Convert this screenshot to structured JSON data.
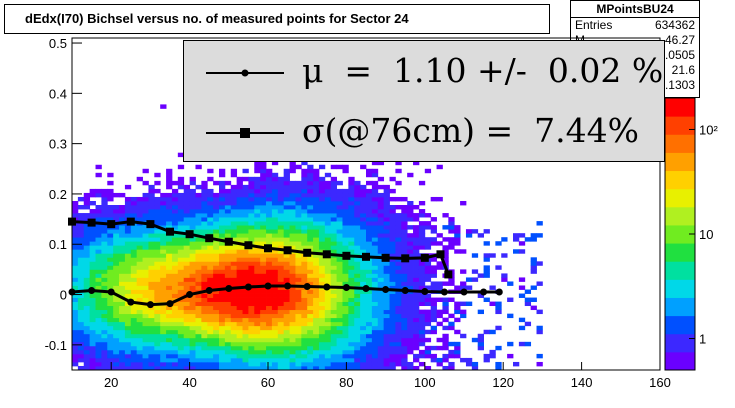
{
  "title": "dEdx(I70) Bichsel versus no. of measured points for Sector 24",
  "stats": {
    "name": "MPointsBU24",
    "rows": [
      {
        "label": "Entries",
        "value": "634362"
      },
      {
        "label": "M",
        "value": "46.27"
      },
      {
        "label": "",
        "value": "0.0505"
      },
      {
        "label": "",
        "value": "21.6"
      },
      {
        "label": "",
        "value": "0.1303"
      }
    ]
  },
  "legend": {
    "mu_text": "μ  =  1.10 +/-  0.02 %",
    "sigma_text": "σ(@76cm) =  7.44%"
  },
  "colors": {
    "frame": "#000000",
    "legend_bg": "#dcdcdc",
    "palette": [
      "#6a00ff",
      "#3c28ff",
      "#0050ff",
      "#00a0ff",
      "#00d8e8",
      "#00e0a0",
      "#20e040",
      "#70ec20",
      "#b0f020",
      "#e8f000",
      "#ffd000",
      "#ffa000",
      "#ff7000",
      "#ff4000",
      "#ff0000"
    ]
  },
  "chart_data": {
    "type": "heatmap",
    "title": "dEdx(I70) Bichsel versus no. of measured points for Sector 24",
    "xlabel": "",
    "ylabel": "",
    "xlim": [
      10,
      160
    ],
    "ylim": [
      -0.15,
      0.51
    ],
    "xticks": [
      20,
      40,
      60,
      80,
      100,
      120,
      140,
      160
    ],
    "yticks": [
      -0.1,
      0,
      0.1,
      0.2,
      0.3,
      0.4,
      0.5
    ],
    "ytick_labels": [
      "-0.1",
      "0",
      "0.1",
      "0.2",
      "0.3",
      "0.4",
      "0.5"
    ],
    "colorbar_ticks": [
      1,
      10,
      100
    ],
    "colorbar_labels": [
      "1",
      "10",
      "10²"
    ],
    "colorbar_range": [
      0.5,
      200
    ],
    "density_model": {
      "x_center": 58,
      "x_width": 26,
      "y_center": 0.01,
      "y_width_base": 0.11,
      "x_max_dense": 110,
      "x_max_sparse": 130
    },
    "series": [
      {
        "name": "μ",
        "marker": "circle",
        "x": [
          10,
          15,
          20,
          25,
          30,
          35,
          40,
          45,
          50,
          55,
          60,
          65,
          70,
          75,
          80,
          85,
          90,
          95,
          100,
          105,
          110,
          115,
          119
        ],
        "y": [
          0.005,
          0.008,
          0.005,
          -0.015,
          -0.02,
          -0.018,
          0.0,
          0.008,
          0.012,
          0.015,
          0.017,
          0.017,
          0.016,
          0.015,
          0.014,
          0.012,
          0.01,
          0.008,
          0.006,
          0.005,
          0.005,
          0.005,
          0.005
        ]
      },
      {
        "name": "σ",
        "marker": "square",
        "x": [
          10,
          15,
          20,
          25,
          30,
          35,
          40,
          45,
          50,
          55,
          60,
          65,
          70,
          75,
          80,
          85,
          90,
          95,
          100,
          104,
          106
        ],
        "y": [
          0.145,
          0.143,
          0.14,
          0.145,
          0.14,
          0.125,
          0.12,
          0.112,
          0.105,
          0.098,
          0.092,
          0.088,
          0.083,
          0.08,
          0.077,
          0.075,
          0.073,
          0.072,
          0.073,
          0.08,
          0.04
        ]
      }
    ]
  }
}
